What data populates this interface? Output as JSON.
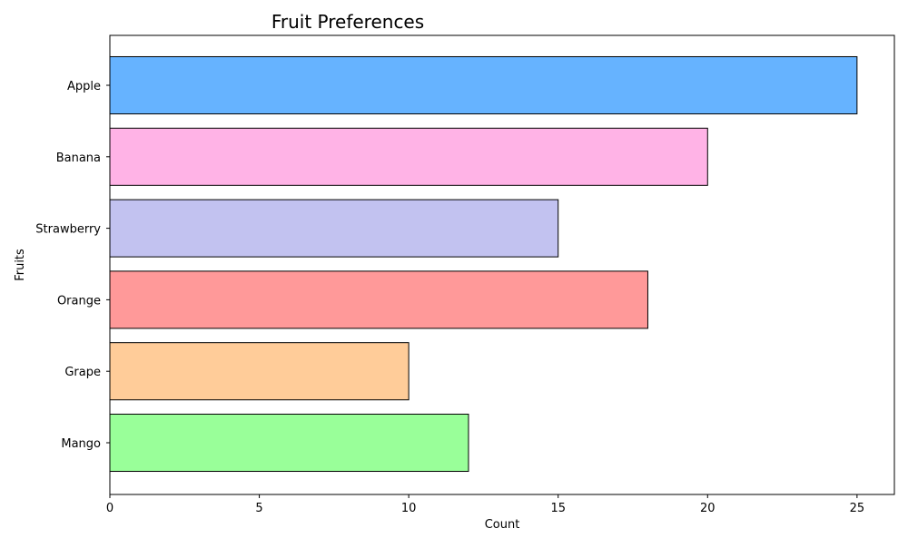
{
  "chart_data": {
    "type": "bar",
    "orientation": "horizontal",
    "title": "Fruit Preferences",
    "xlabel": "Count",
    "ylabel": "Fruits",
    "categories": [
      "Apple",
      "Banana",
      "Strawberry",
      "Orange",
      "Grape",
      "Mango"
    ],
    "values": [
      25,
      20,
      15,
      18,
      10,
      12
    ],
    "colors": [
      "#66b3ff",
      "#ffb3e6",
      "#c2c2f0",
      "#ff9999",
      "#ffcc99",
      "#99ff99"
    ],
    "edge_color": "#000000",
    "xlim": [
      0,
      26.25
    ],
    "xticks": [
      0,
      5,
      10,
      15,
      20,
      25
    ],
    "grid": false,
    "legend": "none"
  }
}
